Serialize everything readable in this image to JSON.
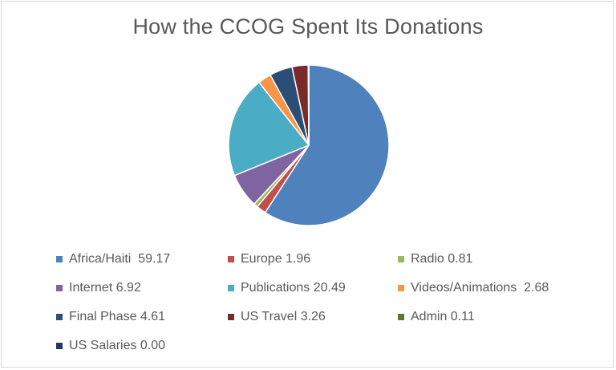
{
  "chart_data": {
    "type": "pie",
    "title": "How the CCOG Spent Its Donations",
    "legend_position": "bottom",
    "slices": [
      {
        "label": "Africa/Haiti  59.17",
        "name": "Africa/Haiti",
        "value": 59.17,
        "color": "#4f81bd"
      },
      {
        "label": "Europe 1.96",
        "name": "Europe",
        "value": 1.96,
        "color": "#c0504d"
      },
      {
        "label": "Radio 0.81",
        "name": "Radio",
        "value": 0.81,
        "color": "#9bbb59"
      },
      {
        "label": "Internet 6.92",
        "name": "Internet",
        "value": 6.92,
        "color": "#8064a2"
      },
      {
        "label": "Publications 20.49",
        "name": "Publications",
        "value": 20.49,
        "color": "#4bacc6"
      },
      {
        "label": "Videos/Animations  2.68",
        "name": "Videos/Animations",
        "value": 2.68,
        "color": "#f79646"
      },
      {
        "label": "Final Phase 4.61",
        "name": "Final Phase",
        "value": 4.61,
        "color": "#2c4d75"
      },
      {
        "label": "US Travel 3.26",
        "name": "US Travel",
        "value": 3.26,
        "color": "#772c2a"
      },
      {
        "label": "Admin 0.11",
        "name": "Admin",
        "value": 0.11,
        "color": "#5f7530"
      },
      {
        "label": "US Salaries 0.00",
        "name": "US Salaries",
        "value": 0.0,
        "color": "#1f3a5f"
      }
    ]
  }
}
